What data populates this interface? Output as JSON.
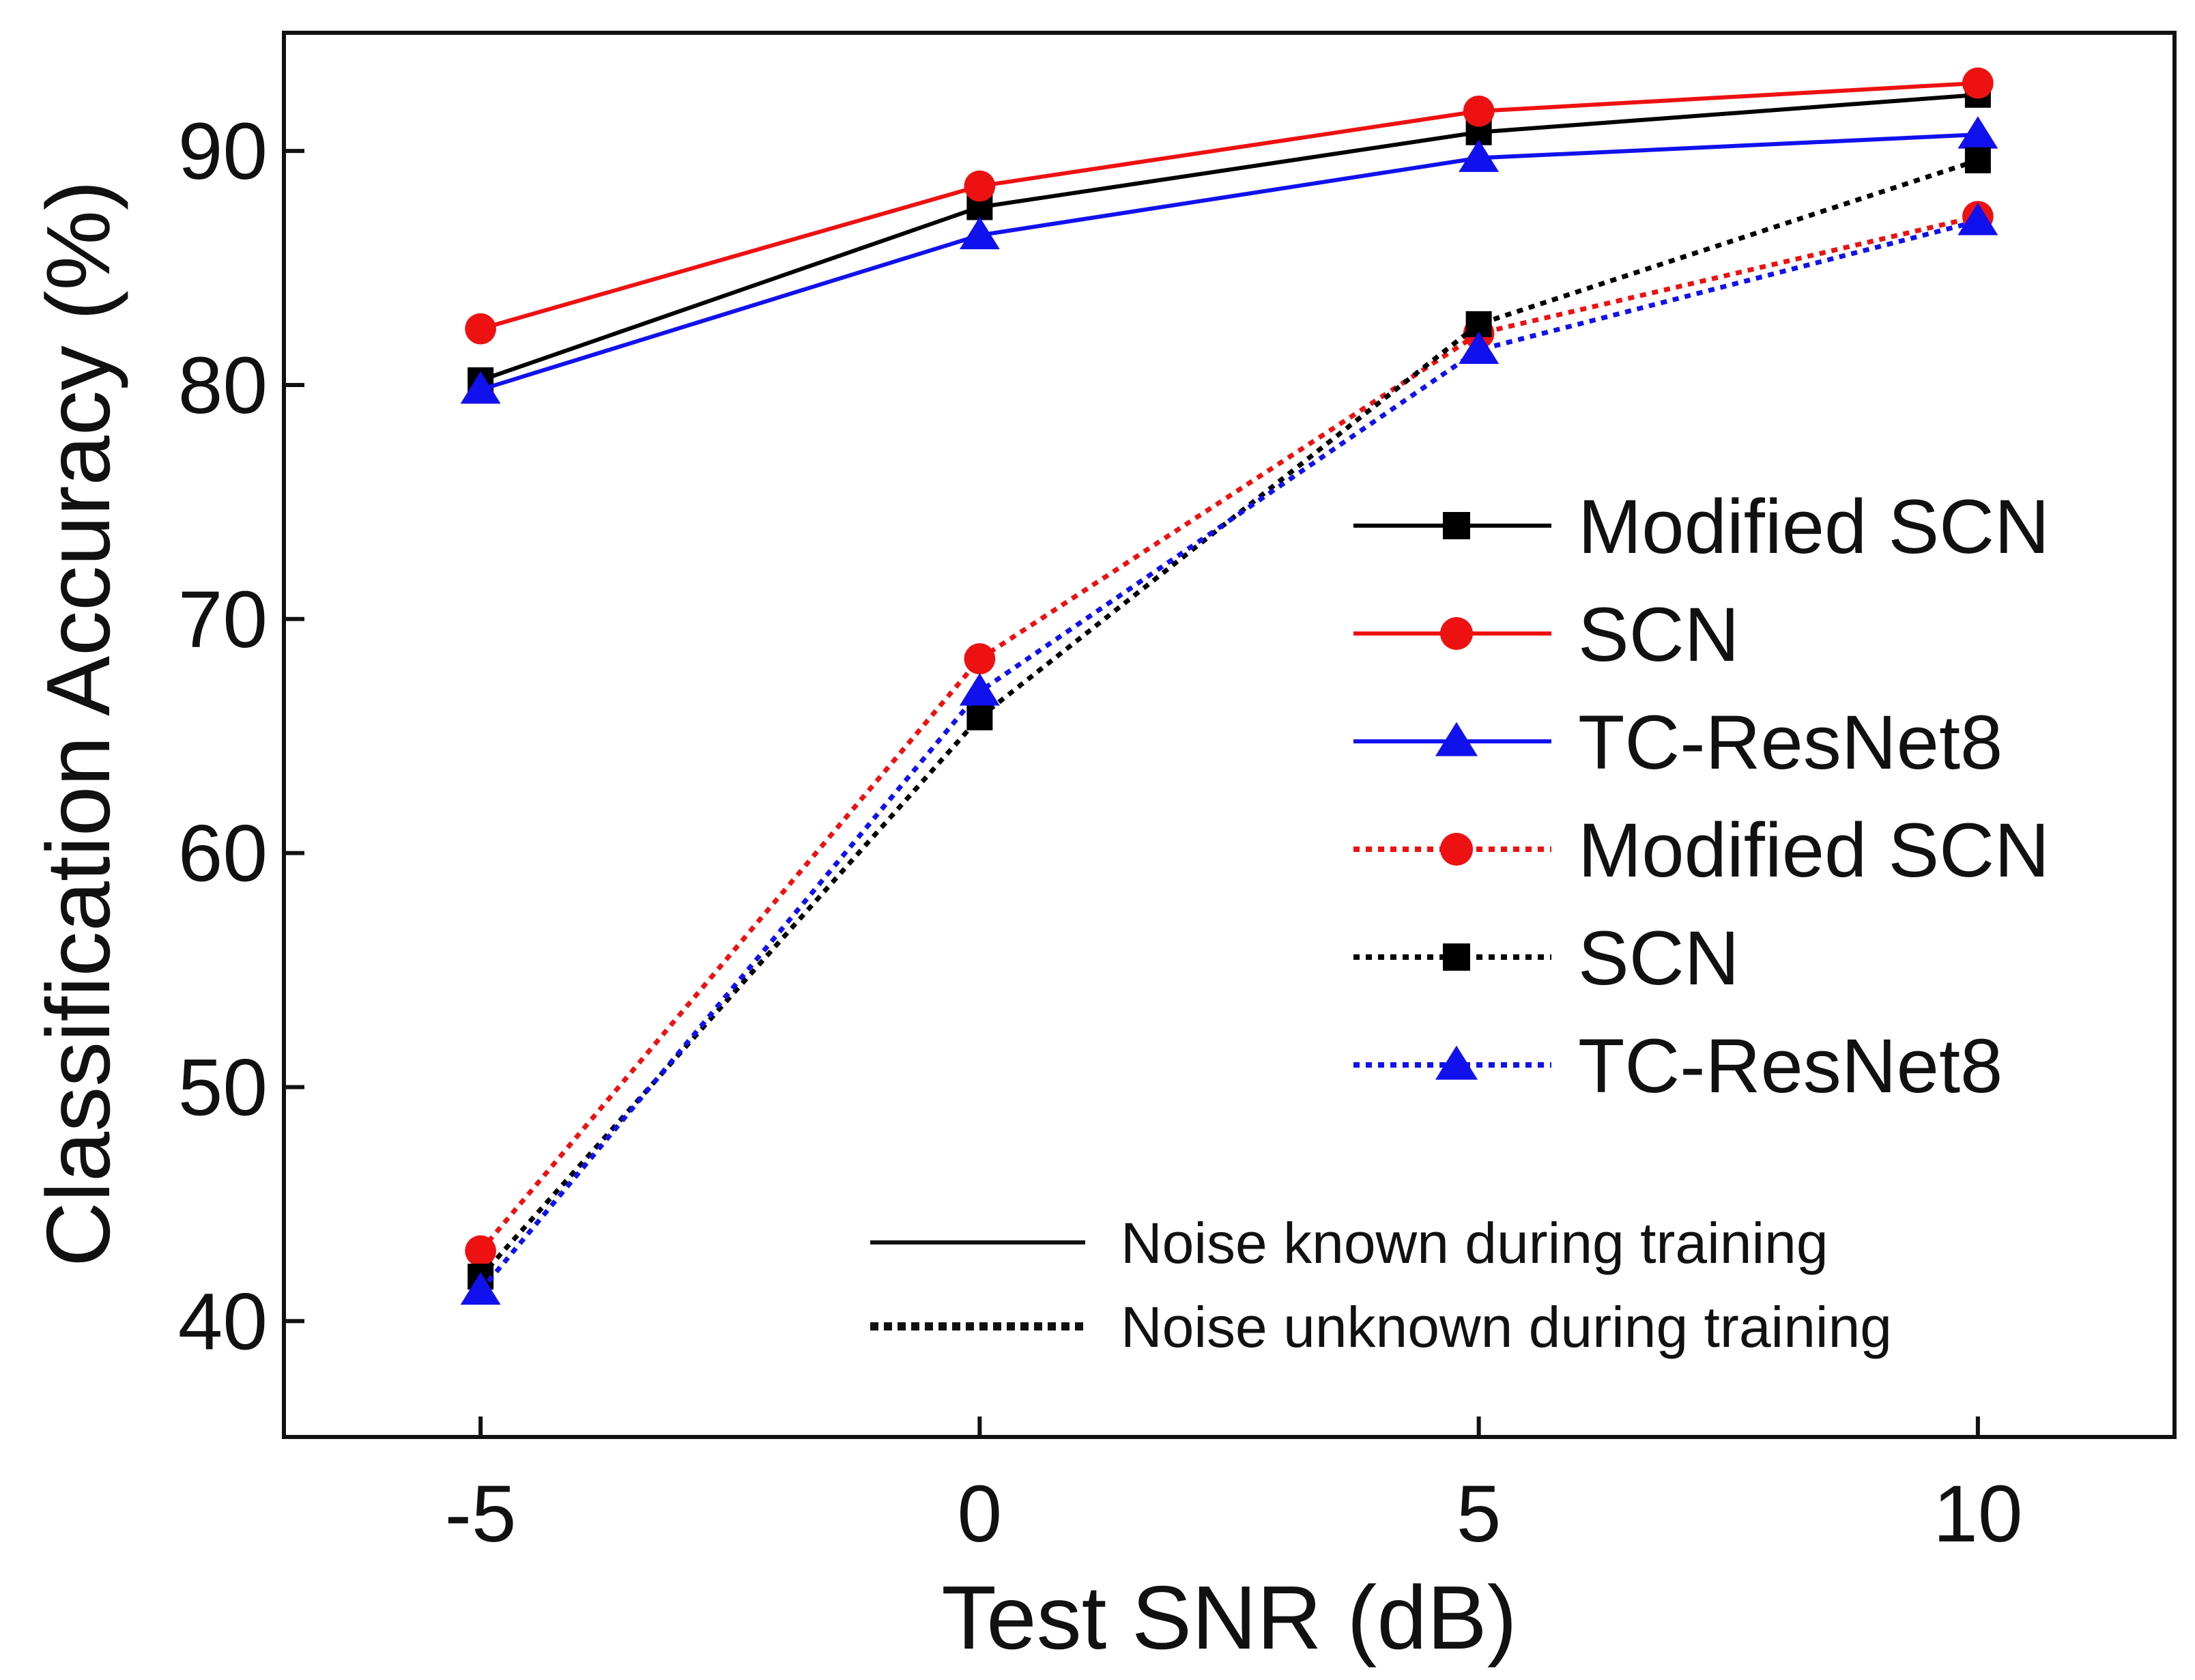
{
  "chart_data": {
    "type": "line",
    "xlabel": "Test SNR (dB)",
    "ylabel": "Classification Accuracy (%)",
    "xlim": [
      -6.97,
      11.97
    ],
    "ylim": [
      35.05,
      95.05
    ],
    "xticks": [
      "-5",
      "0",
      "5",
      "10"
    ],
    "yticks": [
      "40",
      "50",
      "60",
      "70",
      "80",
      "90"
    ],
    "grid": false,
    "legend_position": "right",
    "x": [
      -5,
      0,
      5,
      10
    ],
    "series": [
      {
        "name": "Modified SCN",
        "values": [
          80.2,
          87.6,
          90.8,
          92.4
        ],
        "color": "#000000",
        "line": "solid",
        "marker": "square"
      },
      {
        "name": "SCN",
        "values": [
          82.4,
          88.5,
          91.7,
          92.9
        ],
        "color": "#ee1111",
        "line": "solid",
        "marker": "circle"
      },
      {
        "name": "TC-ResNet8",
        "values": [
          79.8,
          86.4,
          89.7,
          90.7
        ],
        "color": "#1111ee",
        "line": "solid",
        "marker": "triangle"
      },
      {
        "name": "Modified SCN",
        "values": [
          43.0,
          68.3,
          82.2,
          87.2
        ],
        "color": "#ee1111",
        "line": "dotted",
        "marker": "circle"
      },
      {
        "name": "SCN",
        "values": [
          41.9,
          65.8,
          82.6,
          89.6
        ],
        "color": "#000000",
        "line": "dotted",
        "marker": "square"
      },
      {
        "name": "TC-ResNet8",
        "values": [
          41.3,
          66.9,
          81.5,
          87.0
        ],
        "color": "#1111ee",
        "line": "dotted",
        "marker": "triangle"
      }
    ],
    "annotations": [
      {
        "label": "Noise known during training",
        "line": "solid"
      },
      {
        "label": "Noise unknown during training",
        "line": "dotted"
      }
    ]
  }
}
